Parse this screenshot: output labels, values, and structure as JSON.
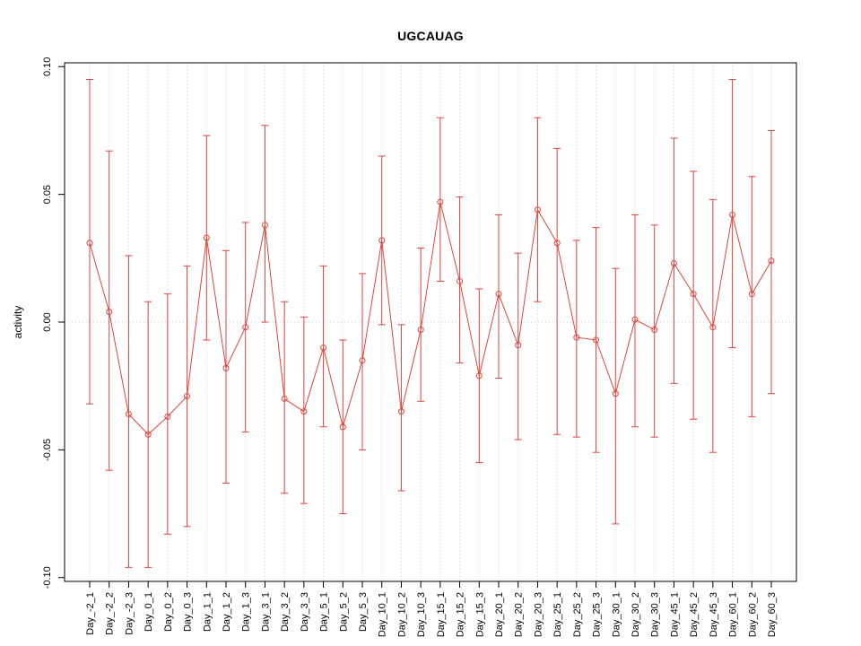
{
  "chart_data": {
    "type": "line",
    "title": "UGCAUAG",
    "ylabel": "activity",
    "xlabel": "",
    "ylim": [
      -0.1,
      0.1
    ],
    "yticks": [
      -0.1,
      -0.05,
      0.0,
      0.05,
      0.1
    ],
    "ytick_labels": [
      "-0.10",
      "-0.05",
      "0.00",
      "0.05",
      "0.10"
    ],
    "grid": "dotted vertical gridline at each category plus dotted horizontal line at 0",
    "legend": "none",
    "series_color": "#e0453c",
    "grid_color": "#d0d0d0",
    "axis_color": "#000000",
    "categories": [
      "Day_-2_1",
      "Day_-2_2",
      "Day_-2_3",
      "Day_0_1",
      "Day_0_2",
      "Day_0_3",
      "Day_1_1",
      "Day_1_2",
      "Day_1_3",
      "Day_3_1",
      "Day_3_2",
      "Day_3_3",
      "Day_5_1",
      "Day_5_2",
      "Day_5_3",
      "Day_10_1",
      "Day_10_2",
      "Day_10_3",
      "Day_15_1",
      "Day_15_2",
      "Day_15_3",
      "Day_20_1",
      "Day_20_2",
      "Day_20_3",
      "Day_25_1",
      "Day_25_2",
      "Day_25_3",
      "Day_30_1",
      "Day_30_2",
      "Day_30_3",
      "Day_45_1",
      "Day_45_2",
      "Day_45_3",
      "Day_60_1",
      "Day_60_2",
      "Day_60_3"
    ],
    "series": [
      {
        "name": "activity",
        "marker": "open-circle",
        "means": [
          0.031,
          0.004,
          -0.036,
          -0.044,
          -0.037,
          -0.029,
          0.033,
          -0.018,
          -0.002,
          0.038,
          -0.03,
          -0.035,
          -0.01,
          -0.041,
          -0.015,
          0.032,
          -0.035,
          -0.003,
          0.047,
          0.016,
          -0.021,
          0.011,
          -0.009,
          0.044,
          0.031,
          -0.006,
          -0.007,
          -0.028,
          0.001,
          -0.003,
          0.023,
          0.011,
          -0.002,
          0.042,
          0.011,
          0.024
        ],
        "upper": [
          0.095,
          0.067,
          0.026,
          0.008,
          0.011,
          0.022,
          0.073,
          0.028,
          0.039,
          0.077,
          0.008,
          0.002,
          0.022,
          -0.007,
          0.019,
          0.065,
          -0.001,
          0.029,
          0.08,
          0.049,
          0.013,
          0.042,
          0.027,
          0.08,
          0.068,
          0.032,
          0.037,
          0.021,
          0.042,
          0.038,
          0.072,
          0.059,
          0.048,
          0.095,
          0.057,
          0.075
        ],
        "lower": [
          -0.032,
          -0.058,
          -0.096,
          -0.096,
          -0.083,
          -0.08,
          -0.007,
          -0.063,
          -0.043,
          0.0,
          -0.067,
          -0.071,
          -0.041,
          -0.075,
          -0.05,
          -0.001,
          -0.066,
          -0.031,
          0.016,
          -0.016,
          -0.055,
          -0.022,
          -0.046,
          0.008,
          -0.044,
          -0.045,
          -0.051,
          -0.079,
          -0.041,
          -0.045,
          -0.024,
          -0.038,
          -0.051,
          -0.01,
          -0.037,
          -0.028
        ]
      }
    ]
  }
}
